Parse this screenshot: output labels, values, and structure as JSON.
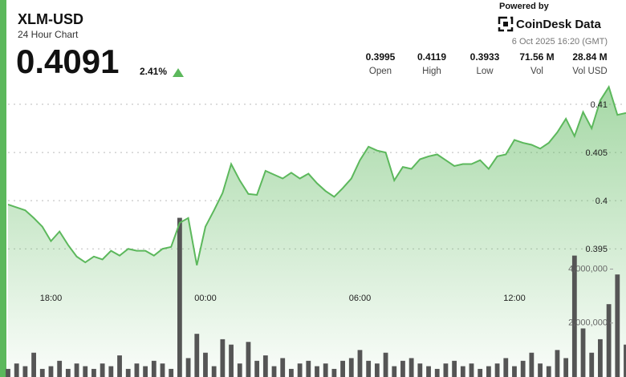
{
  "header": {
    "title": "XLM-USD",
    "subtitle": "24 Hour Chart",
    "price": "0.4091",
    "change": "2.41%",
    "powered_by": "Powered by",
    "brand": "CoinDesk Data",
    "timestamp": "6 Oct 2025 16:20 (GMT)",
    "stats": [
      {
        "value": "0.3995",
        "label": "Open"
      },
      {
        "value": "0.4119",
        "label": "High"
      },
      {
        "value": "0.3933",
        "label": "Low"
      },
      {
        "value": "71.56 M",
        "label": "Vol"
      },
      {
        "value": "28.84 M",
        "label": "Vol USD"
      }
    ]
  },
  "chart_data": {
    "type": "line",
    "x": [
      "16:20",
      "16:40",
      "17:00",
      "17:20",
      "17:40",
      "18:00",
      "18:20",
      "18:40",
      "19:00",
      "19:20",
      "19:40",
      "20:00",
      "20:20",
      "20:40",
      "21:00",
      "21:20",
      "21:40",
      "22:00",
      "22:20",
      "22:40",
      "23:00",
      "23:20",
      "23:40",
      "00:00",
      "00:20",
      "00:40",
      "01:00",
      "01:20",
      "01:40",
      "02:00",
      "02:20",
      "02:40",
      "03:00",
      "03:20",
      "03:40",
      "04:00",
      "04:20",
      "04:40",
      "05:00",
      "05:20",
      "05:40",
      "06:00",
      "06:20",
      "06:40",
      "07:00",
      "07:20",
      "07:40",
      "08:00",
      "08:20",
      "08:40",
      "09:00",
      "09:20",
      "09:40",
      "10:00",
      "10:20",
      "10:40",
      "11:00",
      "11:20",
      "11:40",
      "12:00",
      "12:20",
      "12:40",
      "13:00",
      "13:20",
      "13:40",
      "14:00",
      "14:20",
      "14:40",
      "15:00",
      "15:20",
      "15:40",
      "16:00",
      "16:20"
    ],
    "series": [
      {
        "color": "#5cb85c",
        "values": [
          0.3996,
          0.3993,
          0.399,
          0.3982,
          0.3973,
          0.3958,
          0.3968,
          0.3954,
          0.3942,
          0.3936,
          0.3942,
          0.3939,
          0.3948,
          0.3943,
          0.395,
          0.3948,
          0.3948,
          0.3943,
          0.395,
          0.3952,
          0.3977,
          0.3982,
          0.3933,
          0.3973,
          0.399,
          0.4008,
          0.4038,
          0.4021,
          0.4007,
          0.4006,
          0.4031,
          0.4027,
          0.4023,
          0.4029,
          0.4023,
          0.4028,
          0.4018,
          0.401,
          0.4004,
          0.4013,
          0.4023,
          0.4042,
          0.4056,
          0.4052,
          0.405,
          0.4021,
          0.4035,
          0.4033,
          0.4043,
          0.4046,
          0.4048,
          0.4042,
          0.4036,
          0.4038,
          0.4038,
          0.4042,
          0.4033,
          0.4046,
          0.4048,
          0.4063,
          0.406,
          0.4058,
          0.4054,
          0.406,
          0.4071,
          0.4085,
          0.4067,
          0.4092,
          0.4075,
          0.4104,
          0.4118,
          0.4089,
          0.4091
        ]
      },
      {
        "type": "bar",
        "axis": "y2",
        "color": "#555555",
        "values": [
          300000,
          500000,
          400000,
          900000,
          300000,
          400000,
          600000,
          300000,
          500000,
          400000,
          300000,
          500000,
          400000,
          800000,
          300000,
          500000,
          400000,
          600000,
          500000,
          300000,
          5900000,
          700000,
          1600000,
          900000,
          400000,
          1400000,
          1200000,
          500000,
          1300000,
          600000,
          800000,
          400000,
          700000,
          300000,
          500000,
          600000,
          400000,
          500000,
          300000,
          600000,
          700000,
          1000000,
          600000,
          500000,
          900000,
          400000,
          600000,
          700000,
          500000,
          400000,
          300000,
          500000,
          600000,
          400000,
          500000,
          300000,
          400000,
          500000,
          700000,
          400000,
          600000,
          900000,
          500000,
          400000,
          1000000,
          700000,
          4500000,
          1800000,
          900000,
          1400000,
          2700000,
          3800000,
          1200000
        ]
      }
    ],
    "ylim": [
      0.3817,
      0.4125
    ],
    "yticks": [
      0.395,
      0.4,
      0.405,
      0.41
    ],
    "y2lim": [
      0,
      11000000
    ],
    "y2ticks": [
      {
        "value": 2000000,
        "label": "2,000,000"
      },
      {
        "value": 4000000,
        "label": "4,000,000"
      }
    ],
    "xticks": [
      "18:00",
      "00:00",
      "06:00",
      "12:00"
    ],
    "grid": true
  }
}
